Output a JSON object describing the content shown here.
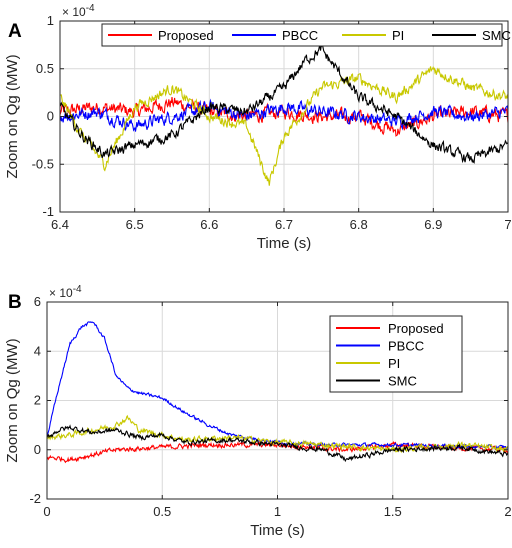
{
  "chart_data": [
    {
      "panel_label": "A",
      "type": "line",
      "xlabel": "Time (s)",
      "ylabel": "Zoom on Qg (MW)",
      "y_exponent_label": "× 10",
      "y_exponent_power": "-4",
      "xlim": [
        6.4,
        7.0
      ],
      "ylim": [
        -1,
        1
      ],
      "x_ticks": [
        "6.4",
        "6.5",
        "6.6",
        "6.7",
        "6.8",
        "6.9",
        "7"
      ],
      "y_ticks": [
        "-1",
        "-0.5",
        "0",
        "0.5",
        "1"
      ],
      "grid": true,
      "legend_position": "top-right",
      "legend_orientation": "horizontal",
      "series": [
        {
          "name": "Proposed",
          "color": "#ff0000",
          "x": [
            6.4,
            6.45,
            6.5,
            6.55,
            6.6,
            6.65,
            6.7,
            6.75,
            6.8,
            6.85,
            6.9,
            6.95,
            7.0
          ],
          "y": [
            0.05,
            0.1,
            0.05,
            0.15,
            0.05,
            0.0,
            0.05,
            0.0,
            0.0,
            -0.15,
            0.0,
            0.05,
            0.0
          ]
        },
        {
          "name": "PBCC",
          "color": "#0000ff",
          "x": [
            6.4,
            6.45,
            6.5,
            6.55,
            6.6,
            6.65,
            6.7,
            6.75,
            6.8,
            6.85,
            6.9,
            6.95,
            7.0
          ],
          "y": [
            0.0,
            0.05,
            -0.1,
            0.0,
            0.1,
            0.0,
            0.1,
            0.05,
            0.0,
            -0.05,
            0.05,
            0.0,
            0.05
          ]
        },
        {
          "name": "PI",
          "color": "#c8c800",
          "x": [
            6.4,
            6.43,
            6.46,
            6.5,
            6.55,
            6.6,
            6.65,
            6.68,
            6.7,
            6.75,
            6.8,
            6.85,
            6.9,
            6.95,
            7.0
          ],
          "y": [
            0.2,
            -0.2,
            -0.5,
            0.1,
            0.3,
            0.0,
            -0.1,
            -0.7,
            -0.2,
            0.3,
            0.4,
            0.2,
            0.5,
            0.3,
            0.2
          ]
        },
        {
          "name": "SMC",
          "color": "#000000",
          "x": [
            6.4,
            6.43,
            6.46,
            6.5,
            6.55,
            6.6,
            6.65,
            6.7,
            6.73,
            6.75,
            6.78,
            6.8,
            6.85,
            6.9,
            6.95,
            7.0
          ],
          "y": [
            0.1,
            -0.2,
            -0.4,
            -0.3,
            -0.2,
            0.1,
            0.05,
            0.3,
            0.6,
            0.7,
            0.4,
            0.2,
            0.0,
            -0.3,
            -0.45,
            -0.3
          ]
        }
      ]
    },
    {
      "panel_label": "B",
      "type": "line",
      "xlabel": "Time (s)",
      "ylabel": "Zoom on Qg (MW)",
      "y_exponent_label": "× 10",
      "y_exponent_power": "-4",
      "xlim": [
        0,
        2
      ],
      "ylim": [
        -2,
        6
      ],
      "x_ticks": [
        "0",
        "0.5",
        "1",
        "1.5",
        "2"
      ],
      "y_ticks": [
        "-2",
        "0",
        "2",
        "4",
        "6"
      ],
      "grid": true,
      "legend_position": "right",
      "legend_orientation": "vertical",
      "series": [
        {
          "name": "Proposed",
          "color": "#ff0000",
          "x": [
            0,
            0.1,
            0.2,
            0.3,
            0.5,
            0.7,
            1.0,
            1.3,
            1.5,
            1.7,
            2.0
          ],
          "y": [
            -0.3,
            -0.4,
            -0.2,
            0.0,
            0.1,
            0.2,
            0.2,
            0.0,
            0.2,
            0.1,
            0.0
          ]
        },
        {
          "name": "PBCC",
          "color": "#0000ff",
          "x": [
            0,
            0.05,
            0.1,
            0.15,
            0.2,
            0.25,
            0.3,
            0.35,
            0.4,
            0.5,
            0.6,
            0.7,
            0.8,
            1.0,
            1.2,
            1.5,
            2.0
          ],
          "y": [
            0.5,
            2.5,
            4.3,
            5.0,
            5.2,
            4.5,
            3.0,
            2.5,
            2.3,
            2.1,
            1.5,
            1.0,
            0.6,
            0.3,
            0.2,
            0.2,
            0.1
          ]
        },
        {
          "name": "PI",
          "color": "#c8c800",
          "x": [
            0,
            0.1,
            0.2,
            0.3,
            0.35,
            0.4,
            0.5,
            0.6,
            0.8,
            1.0,
            1.2,
            1.5,
            1.8,
            2.0
          ],
          "y": [
            0.5,
            0.6,
            0.8,
            1.0,
            1.3,
            0.8,
            0.6,
            0.4,
            0.5,
            0.3,
            0.2,
            0.0,
            0.2,
            0.0
          ]
        },
        {
          "name": "SMC",
          "color": "#000000",
          "x": [
            0,
            0.05,
            0.1,
            0.2,
            0.3,
            0.4,
            0.5,
            0.6,
            0.8,
            1.0,
            1.2,
            1.3,
            1.5,
            1.8,
            2.0
          ],
          "y": [
            0.5,
            0.8,
            0.9,
            0.7,
            0.8,
            0.5,
            0.6,
            0.3,
            0.4,
            0.2,
            0.0,
            -0.4,
            0.0,
            0.1,
            -0.2
          ]
        }
      ]
    }
  ]
}
